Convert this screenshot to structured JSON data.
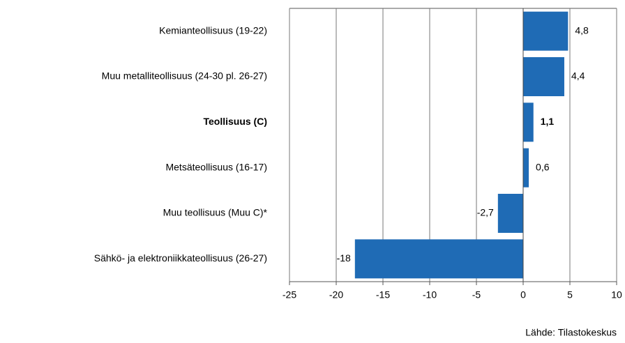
{
  "chart_data": {
    "type": "bar",
    "orientation": "horizontal",
    "categories": [
      "Kemianteollisuus (19-22)",
      "Muu metalliteollisuus (24-30  pl. 26-27)",
      "Teollisuus (C)",
      "Metsäteollisuus (16-17)",
      "Muu teollisuus (Muu C)*",
      "Sähkö- ja elektroniikkateollisuus  (26-27)"
    ],
    "values": [
      4.8,
      4.4,
      1.1,
      0.6,
      -2.7,
      -18
    ],
    "value_labels": [
      "4,8",
      "4,4",
      "1,1",
      "0,6",
      "-2,7",
      "-18"
    ],
    "color": "#1f6bb5",
    "xlim": [
      -25,
      10
    ],
    "xticks": [
      -25,
      -20,
      -15,
      -10,
      -5,
      0,
      5,
      10
    ],
    "grid": true,
    "source": "Lähde: Tilastokeskus"
  }
}
